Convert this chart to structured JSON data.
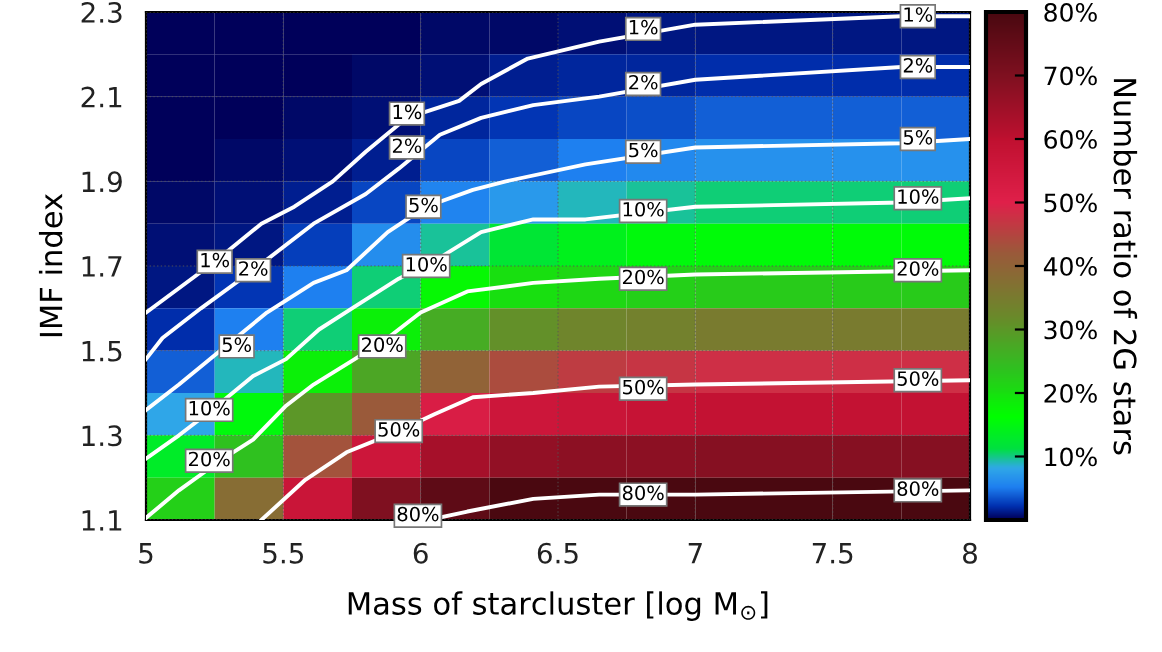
{
  "chart_data": {
    "type": "heatmap",
    "xlabel": "Mass of starcluster [log M$_{⊙}$]",
    "ylabel": "IMF index",
    "clabel": "Number ratio of 2G stars",
    "xlim": [
      5,
      8
    ],
    "ylim": [
      1.1,
      2.3
    ],
    "xticks": [
      5,
      5.5,
      6,
      6.5,
      7,
      7.5,
      8
    ],
    "yticks": [
      1.1,
      1.3,
      1.5,
      1.7,
      1.9,
      2.1,
      2.3
    ],
    "clim": [
      0,
      80
    ],
    "cticks": [
      {
        "value": 10,
        "label": "10%"
      },
      {
        "value": 20,
        "label": "20%"
      },
      {
        "value": 30,
        "label": "30%"
      },
      {
        "value": 40,
        "label": "40%"
      },
      {
        "value": 50,
        "label": "50%"
      },
      {
        "value": 60,
        "label": "60%"
      },
      {
        "value": 70,
        "label": "70%"
      },
      {
        "value": 80,
        "label": "80%"
      }
    ],
    "grid": true,
    "cells": [
      [
        0.1,
        0.1,
        0.2,
        0.3,
        0.4,
        0.6,
        0.8,
        1,
        1.1,
        1.1,
        1.1,
        1.1
      ],
      [
        0.1,
        0.2,
        0.3,
        0.5,
        0.7,
        1.3,
        1.6,
        1.8,
        2.1,
        2.1,
        2.1,
        2.1
      ],
      [
        0.2,
        0.3,
        0.5,
        0.8,
        1.8,
        2.4,
        3,
        3.3,
        3.8,
        3.8,
        3.8,
        3.8
      ],
      [
        0.3,
        0.5,
        0.8,
        1.5,
        3,
        4,
        5,
        5.7,
        6.3,
        6.3,
        6.3,
        6.3
      ],
      [
        0.5,
        0.7,
        1.3,
        3,
        5.5,
        7,
        9,
        9.5,
        10,
        10,
        10,
        10
      ],
      [
        0.7,
        1.2,
        2.8,
        6,
        9.5,
        12,
        14,
        15,
        15.5,
        15.5,
        15.5,
        15.5
      ],
      [
        1,
        2.3,
        5.3,
        10,
        17,
        20,
        21,
        22,
        22.5,
        22.5,
        22.5,
        22.5
      ],
      [
        2,
        5,
        10,
        18,
        27,
        31,
        33,
        34,
        35,
        35,
        35,
        35
      ],
      [
        4,
        9,
        18,
        28,
        40,
        44,
        46,
        47,
        48,
        48,
        48,
        48
      ],
      [
        8,
        15,
        30,
        42,
        52,
        56,
        57,
        58,
        59,
        59,
        59,
        59
      ],
      [
        13,
        24,
        43,
        56,
        64,
        67,
        68,
        68,
        69,
        69,
        69,
        69
      ],
      [
        22,
        38,
        57,
        70,
        76,
        80,
        80,
        80,
        80,
        80,
        80,
        80
      ]
    ],
    "series": [
      {
        "type": "line",
        "color": "#ffffff",
        "x": [
          5,
          5.25,
          5.42,
          5.54,
          5.68,
          5.8,
          5.95,
          6.14,
          6.22,
          6.39,
          6.65,
          7,
          7.75,
          8
        ],
        "values": [
          1.59,
          1.71,
          1.8,
          1.84,
          1.9,
          1.97,
          2.05,
          2.09,
          2.13,
          2.19,
          2.23,
          2.27,
          2.29,
          2.29
        ]
      },
      {
        "type": "line",
        "color": "#ffffff",
        "x": [
          5,
          5.06,
          5.2,
          5.39,
          5.61,
          5.8,
          5.92,
          6.07,
          6.22,
          6.41,
          6.65,
          7,
          7.75,
          8
        ],
        "values": [
          1.48,
          1.53,
          1.6,
          1.69,
          1.8,
          1.87,
          1.93,
          2.01,
          2.05,
          2.08,
          2.1,
          2.14,
          2.17,
          2.17
        ]
      },
      {
        "type": "line",
        "color": "#ffffff",
        "x": [
          5,
          5.12,
          5.27,
          5.44,
          5.61,
          5.73,
          5.88,
          6.02,
          6.19,
          6.31,
          6.6,
          7,
          7.75,
          8
        ],
        "values": [
          1.36,
          1.42,
          1.5,
          1.59,
          1.66,
          1.69,
          1.78,
          1.84,
          1.88,
          1.9,
          1.94,
          1.98,
          1.99,
          2.0
        ]
      },
      {
        "type": "line",
        "color": "#ffffff",
        "x": [
          5,
          5.12,
          5.24,
          5.39,
          5.51,
          5.63,
          5.75,
          5.92,
          6.07,
          6.22,
          6.41,
          6.6,
          7,
          7.75,
          8
        ],
        "values": [
          1.245,
          1.3,
          1.36,
          1.44,
          1.48,
          1.55,
          1.6,
          1.67,
          1.72,
          1.78,
          1.81,
          1.81,
          1.84,
          1.85,
          1.86
        ]
      },
      {
        "type": "line",
        "color": "#ffffff",
        "x": [
          5,
          5.12,
          5.27,
          5.39,
          5.51,
          5.61,
          5.76,
          5.88,
          6.0,
          6.17,
          6.41,
          6.65,
          7,
          8
        ],
        "values": [
          1.105,
          1.17,
          1.24,
          1.29,
          1.37,
          1.42,
          1.48,
          1.53,
          1.59,
          1.64,
          1.66,
          1.67,
          1.68,
          1.69
        ]
      },
      {
        "type": "line",
        "color": "#ffffff",
        "x": [
          5.42,
          5.58,
          5.73,
          5.92,
          6.05,
          6.19,
          6.41,
          6.65,
          7,
          8
        ],
        "values": [
          1.1,
          1.195,
          1.26,
          1.31,
          1.35,
          1.39,
          1.4,
          1.415,
          1.42,
          1.43
        ]
      },
      {
        "type": "line",
        "color": "#ffffff",
        "x": [
          5.95,
          6.05,
          6.17,
          6.41,
          6.65,
          7,
          8
        ],
        "values": [
          1.1,
          1.103,
          1.12,
          1.15,
          1.16,
          1.16,
          1.17
        ]
      }
    ],
    "annotations": [
      {
        "text": "1%",
        "x": 5.25,
        "y": 1.71
      },
      {
        "text": "1%",
        "x": 5.95,
        "y": 2.06
      },
      {
        "text": "1%",
        "x": 6.81,
        "y": 2.26
      },
      {
        "text": "1%",
        "x": 7.81,
        "y": 2.29
      },
      {
        "text": "2%",
        "x": 5.39,
        "y": 1.69
      },
      {
        "text": "2%",
        "x": 5.95,
        "y": 1.98
      },
      {
        "text": "2%",
        "x": 6.81,
        "y": 2.13
      },
      {
        "text": "2%",
        "x": 7.81,
        "y": 2.17
      },
      {
        "text": "5%",
        "x": 5.33,
        "y": 1.51
      },
      {
        "text": "5%",
        "x": 6.01,
        "y": 1.84
      },
      {
        "text": "5%",
        "x": 6.81,
        "y": 1.97
      },
      {
        "text": "5%",
        "x": 7.81,
        "y": 2.0
      },
      {
        "text": "10%",
        "x": 5.23,
        "y": 1.36
      },
      {
        "text": "10%",
        "x": 6.02,
        "y": 1.7
      },
      {
        "text": "10%",
        "x": 6.81,
        "y": 1.83
      },
      {
        "text": "10%",
        "x": 7.81,
        "y": 1.86
      },
      {
        "text": "20%",
        "x": 5.23,
        "y": 1.24
      },
      {
        "text": "20%",
        "x": 5.86,
        "y": 1.51
      },
      {
        "text": "20%",
        "x": 6.81,
        "y": 1.67
      },
      {
        "text": "20%",
        "x": 7.81,
        "y": 1.69
      },
      {
        "text": "50%",
        "x": 5.92,
        "y": 1.31
      },
      {
        "text": "50%",
        "x": 6.81,
        "y": 1.41
      },
      {
        "text": "50%",
        "x": 7.81,
        "y": 1.43
      },
      {
        "text": "80%",
        "x": 5.99,
        "y": 1.11
      },
      {
        "text": "80%",
        "x": 6.81,
        "y": 1.16
      },
      {
        "text": "80%",
        "x": 7.81,
        "y": 1.17
      }
    ]
  }
}
